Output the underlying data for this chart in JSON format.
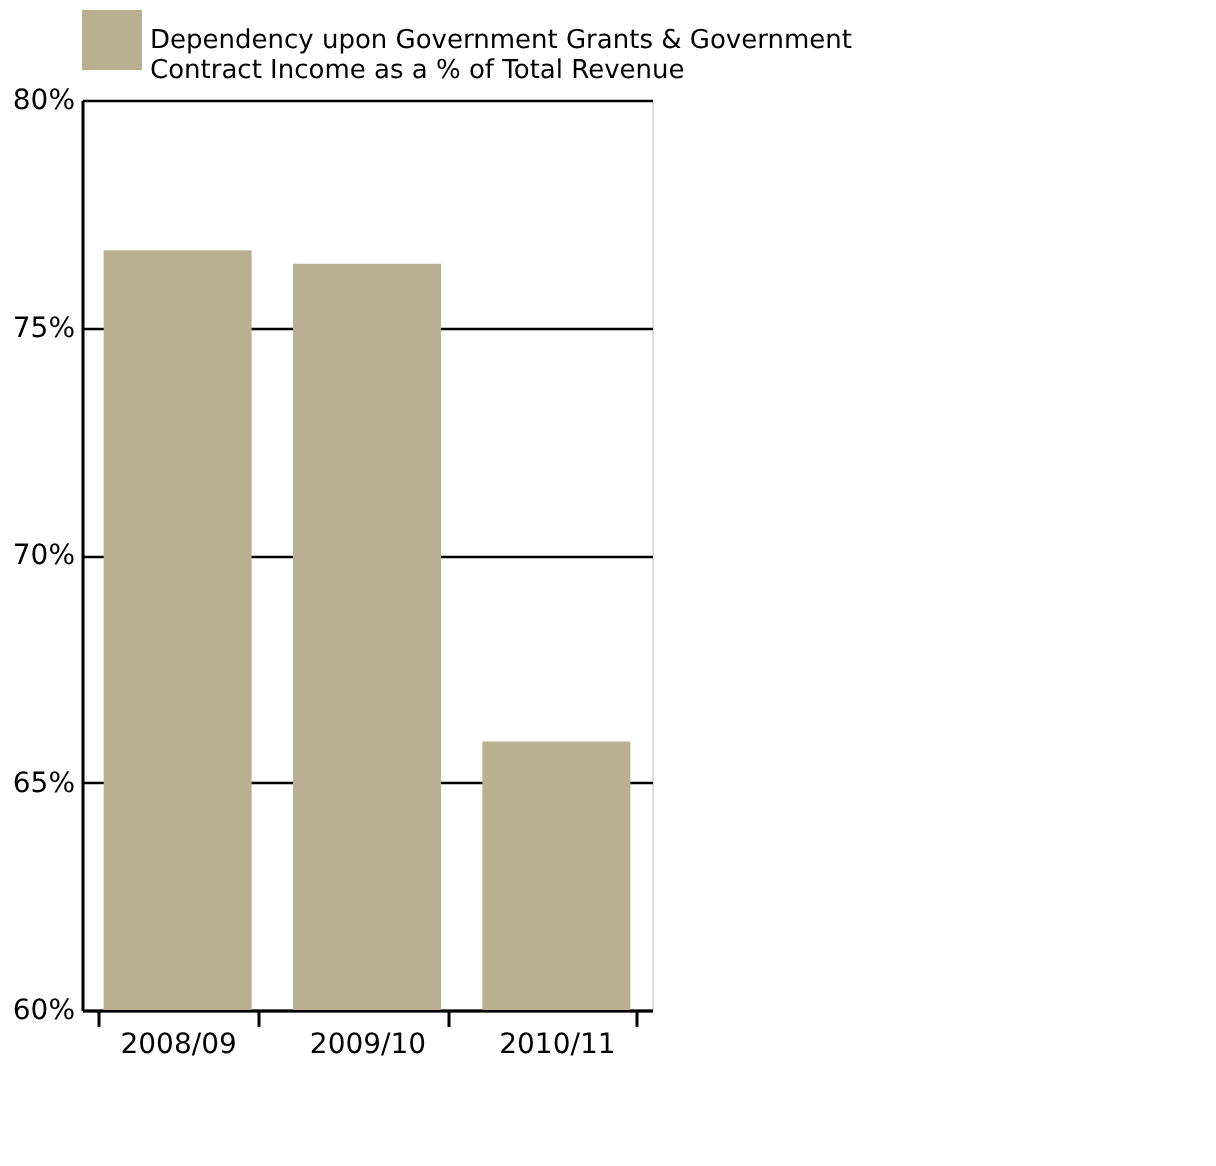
{
  "chart_data": {
    "type": "bar",
    "categories": [
      "2008/09",
      "2009/10",
      "2010/11"
    ],
    "series": [
      {
        "name": "Dependency upon Government Grants & Government Contract Income as a % of Total Revenue",
        "color": "#b8b091",
        "values": [
          76.7,
          76.4,
          65.9
        ]
      }
    ],
    "ylim": [
      60,
      80
    ],
    "yticks": [
      {
        "value": 60,
        "label": "60%"
      },
      {
        "value": 65,
        "label": "65%"
      },
      {
        "value": 70,
        "label": "70%"
      },
      {
        "value": 75,
        "label": "75%"
      },
      {
        "value": 80,
        "label": "80%"
      }
    ],
    "grid": "y",
    "legend": "top"
  }
}
